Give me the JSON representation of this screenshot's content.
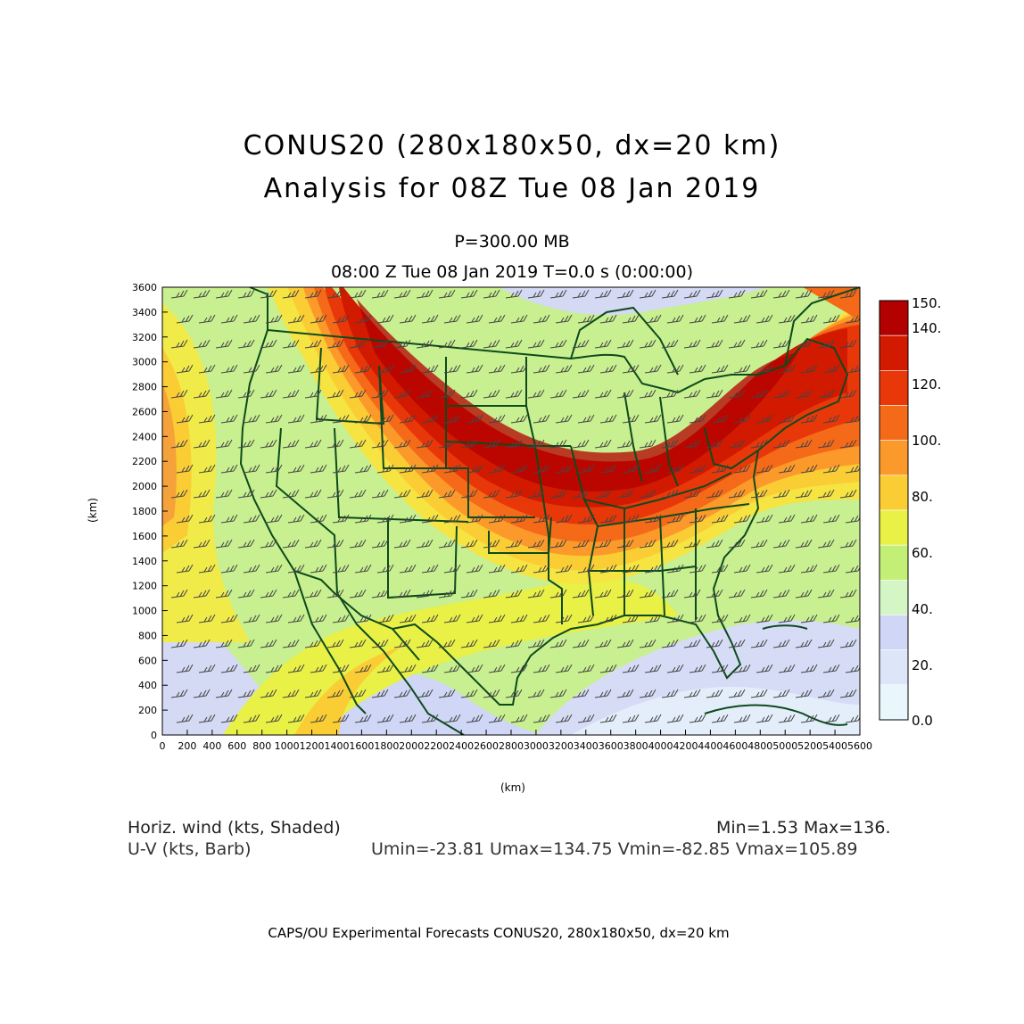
{
  "header": {
    "title_line1": "CONUS20 (280x180x50, dx=20 km)",
    "title_line2": "Analysis for 08Z Tue 08 Jan 2019",
    "level": "P=300.00 MB",
    "valid_time": "08:00 Z Tue 08 Jan 2019    T=0.0 s (0:00:00)"
  },
  "map": {
    "type": "contour-filled wind speed map with wind barbs",
    "x_axis": {
      "label": "(km)",
      "ticks": [
        "0",
        "200",
        "400",
        "600",
        "800",
        "1000",
        "1200",
        "1400",
        "1600",
        "1800",
        "2000",
        "2200",
        "2400",
        "2600",
        "2800",
        "3000",
        "3200",
        "3400",
        "3600",
        "3800",
        "4000",
        "4200",
        "4400",
        "4600",
        "4800",
        "5000",
        "5200",
        "5400",
        "5600"
      ],
      "range": [
        0,
        5600
      ]
    },
    "y_axis": {
      "label": "(km)",
      "ticks": [
        "0",
        "200",
        "400",
        "600",
        "800",
        "1000",
        "1200",
        "1400",
        "1600",
        "1800",
        "2000",
        "2200",
        "2400",
        "2600",
        "2800",
        "3000",
        "3200",
        "3400",
        "3600"
      ],
      "range": [
        0,
        3600
      ]
    },
    "colorbar": {
      "labels": [
        "150.",
        "140.",
        "120.",
        "100.",
        "80.",
        "60.",
        "40.",
        "20.",
        "0.0"
      ],
      "colors": [
        "#b30000",
        "#d21a00",
        "#e8380a",
        "#f56a18",
        "#fb9a2a",
        "#fbcd35",
        "#e9f046",
        "#c4ef77",
        "#d4f5c4",
        "#cfd6f6",
        "#dde6f8",
        "#e9f6fb"
      ]
    }
  },
  "info": {
    "field1_label": "Horiz. wind (kts, Shaded)",
    "field1_stats": "Min=1.53  Max=136.",
    "field2_label": "U-V (kts, Barb)",
    "field2_stats": "Umin=-23.81 Umax=134.75 Vmin=-82.85 Vmax=105.89"
  },
  "footer": "CAPS/OU Experimental Forecasts   CONUS20, 280x180x50, dx=20 km"
}
